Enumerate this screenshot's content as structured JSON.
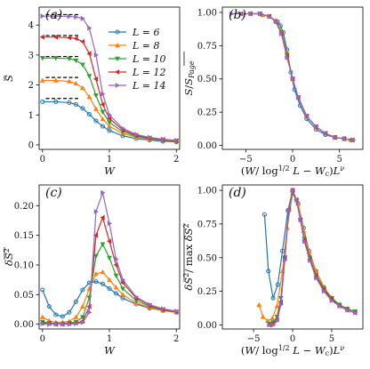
{
  "legend": [
    "L = 6",
    "L = 8",
    "L = 10",
    "L = 12",
    "L = 14"
  ],
  "colors": [
    "#1f77b4",
    "#ff7f0e",
    "#2ca02c",
    "#d62728",
    "#9467bd"
  ],
  "markers": [
    "circle",
    "triangle-up",
    "triangle-down",
    "triangle-left",
    "triangle-right"
  ],
  "chart_data": [
    {
      "type": "line",
      "panel": "(a)",
      "xlabel": "W",
      "ylabel": "S̄",
      "xlim": [
        -0.05,
        2.05
      ],
      "ylim": [
        -0.15,
        4.6
      ],
      "xticks": [
        0,
        1,
        2
      ],
      "yticks": [
        0,
        1,
        2,
        3,
        4
      ],
      "legend_position": "top-right",
      "page_values": [
        1.55,
        2.25,
        2.95,
        3.65,
        4.35
      ],
      "series": [
        {
          "name": "L = 6",
          "x": [
            0.0,
            0.2,
            0.4,
            0.5,
            0.6,
            0.7,
            0.8,
            0.9,
            1.0,
            1.2,
            1.4,
            1.6,
            1.8,
            2.0
          ],
          "y": [
            1.44,
            1.44,
            1.41,
            1.35,
            1.22,
            1.02,
            0.8,
            0.62,
            0.48,
            0.3,
            0.21,
            0.16,
            0.12,
            0.1
          ]
        },
        {
          "name": "L = 8",
          "x": [
            0.0,
            0.2,
            0.4,
            0.5,
            0.6,
            0.7,
            0.8,
            0.9,
            1.0,
            1.2,
            1.4,
            1.6,
            1.8,
            2.0
          ],
          "y": [
            2.15,
            2.15,
            2.12,
            2.05,
            1.9,
            1.6,
            1.2,
            0.86,
            0.62,
            0.38,
            0.26,
            0.19,
            0.15,
            0.12
          ]
        },
        {
          "name": "L = 10",
          "x": [
            0.0,
            0.2,
            0.4,
            0.5,
            0.6,
            0.7,
            0.8,
            0.9,
            1.0,
            1.2,
            1.4,
            1.6,
            1.8,
            2.0
          ],
          "y": [
            2.9,
            2.9,
            2.88,
            2.82,
            2.68,
            2.3,
            1.65,
            1.1,
            0.75,
            0.44,
            0.29,
            0.21,
            0.16,
            0.13
          ]
        },
        {
          "name": "L = 12",
          "x": [
            0.0,
            0.2,
            0.4,
            0.5,
            0.6,
            0.7,
            0.8,
            0.9,
            1.0,
            1.2,
            1.4,
            1.6,
            1.8,
            2.0
          ],
          "y": [
            3.6,
            3.6,
            3.58,
            3.55,
            3.45,
            3.05,
            2.2,
            1.35,
            0.88,
            0.5,
            0.32,
            0.23,
            0.18,
            0.14
          ]
        },
        {
          "name": "L = 14",
          "x": [
            0.0,
            0.2,
            0.4,
            0.5,
            0.6,
            0.7,
            0.8,
            0.9,
            1.0,
            1.2,
            1.4,
            1.6,
            1.8,
            2.0
          ],
          "y": [
            4.3,
            4.3,
            4.29,
            4.27,
            4.22,
            3.9,
            3.0,
            1.7,
            1.0,
            0.55,
            0.35,
            0.25,
            0.19,
            0.15
          ]
        }
      ]
    },
    {
      "type": "line",
      "panel": "(b)",
      "xlabel": "(W/log^{1/2} L − W_c) L^ν",
      "ylabel": "S̄/S_Page",
      "xlim": [
        -7.5,
        7.5
      ],
      "ylim": [
        -0.03,
        1.04
      ],
      "xticks": [
        -5,
        0,
        5
      ],
      "yticks": [
        0.0,
        0.25,
        0.5,
        0.75,
        1.0
      ],
      "ytick_labels": [
        "0.00",
        "0.25",
        "0.50",
        "0.75",
        "1.00"
      ],
      "series": [
        {
          "name": "L = 6",
          "x": [
            -1.6,
            -1.3,
            -1.0,
            -0.6,
            -0.2,
            0.2,
            0.8,
            1.5,
            2.5,
            3.5,
            4.5,
            5.5
          ],
          "y": [
            0.93,
            0.9,
            0.85,
            0.72,
            0.55,
            0.42,
            0.3,
            0.2,
            0.12,
            0.08,
            0.06,
            0.05
          ]
        },
        {
          "name": "L = 8",
          "x": [
            -3.2,
            -2.5,
            -1.8,
            -1.2,
            -0.6,
            0.0,
            0.6,
            1.5,
            2.5,
            3.5,
            4.5,
            5.5,
            6.2
          ],
          "y": [
            0.98,
            0.97,
            0.94,
            0.86,
            0.7,
            0.5,
            0.36,
            0.22,
            0.14,
            0.09,
            0.06,
            0.05,
            0.04
          ]
        },
        {
          "name": "L = 10",
          "x": [
            -4.5,
            -3.5,
            -2.5,
            -1.8,
            -1.2,
            -0.6,
            0.0,
            0.6,
            1.5,
            2.5,
            3.5,
            4.5,
            5.5,
            6.3
          ],
          "y": [
            0.99,
            0.99,
            0.97,
            0.93,
            0.85,
            0.68,
            0.5,
            0.36,
            0.22,
            0.14,
            0.09,
            0.06,
            0.05,
            0.04
          ]
        },
        {
          "name": "L = 12",
          "x": [
            -5.5,
            -4.5,
            -3.5,
            -2.5,
            -1.8,
            -1.2,
            -0.6,
            0.0,
            0.6,
            1.5,
            2.5,
            3.5,
            4.5,
            5.5,
            6.4
          ],
          "y": [
            0.99,
            0.99,
            0.99,
            0.97,
            0.93,
            0.84,
            0.67,
            0.5,
            0.36,
            0.22,
            0.14,
            0.09,
            0.06,
            0.05,
            0.04
          ]
        },
        {
          "name": "L = 14",
          "x": [
            -6.5,
            -5.5,
            -4.5,
            -3.5,
            -2.5,
            -1.8,
            -1.2,
            -0.6,
            0.0,
            0.6,
            1.5,
            2.5,
            3.5,
            4.5,
            5.5,
            6.5
          ],
          "y": [
            0.99,
            0.99,
            0.99,
            0.99,
            0.97,
            0.93,
            0.84,
            0.66,
            0.5,
            0.36,
            0.22,
            0.14,
            0.09,
            0.06,
            0.05,
            0.04
          ]
        }
      ]
    },
    {
      "type": "line",
      "panel": "(c)",
      "xlabel": "W",
      "ylabel": "δS²",
      "xlim": [
        -0.05,
        2.05
      ],
      "ylim": [
        -0.008,
        0.235
      ],
      "xticks": [
        0,
        1,
        2
      ],
      "yticks": [
        0.0,
        0.05,
        0.1,
        0.15,
        0.2
      ],
      "ytick_labels": [
        "0.00",
        "0.05",
        "0.10",
        "0.15",
        "0.20"
      ],
      "series": [
        {
          "name": "L = 6",
          "x": [
            0.0,
            0.1,
            0.2,
            0.3,
            0.4,
            0.5,
            0.6,
            0.7,
            0.8,
            0.9,
            1.0,
            1.1,
            1.2,
            1.4,
            1.6,
            1.8,
            2.0
          ],
          "y": [
            0.058,
            0.03,
            0.016,
            0.013,
            0.02,
            0.038,
            0.058,
            0.07,
            0.072,
            0.068,
            0.06,
            0.052,
            0.044,
            0.034,
            0.027,
            0.023,
            0.02
          ]
        },
        {
          "name": "L = 8",
          "x": [
            0.0,
            0.1,
            0.2,
            0.3,
            0.4,
            0.5,
            0.6,
            0.7,
            0.8,
            0.9,
            1.0,
            1.1,
            1.2,
            1.4,
            1.6,
            1.8,
            2.0
          ],
          "y": [
            0.012,
            0.006,
            0.003,
            0.003,
            0.005,
            0.012,
            0.03,
            0.06,
            0.085,
            0.088,
            0.075,
            0.062,
            0.05,
            0.036,
            0.028,
            0.023,
            0.02
          ]
        },
        {
          "name": "L = 10",
          "x": [
            0.0,
            0.1,
            0.2,
            0.3,
            0.4,
            0.5,
            0.6,
            0.7,
            0.8,
            0.9,
            1.0,
            1.1,
            1.2,
            1.4,
            1.6,
            1.8,
            2.0
          ],
          "y": [
            0.004,
            0.002,
            0.001,
            0.001,
            0.002,
            0.004,
            0.012,
            0.045,
            0.115,
            0.135,
            0.112,
            0.082,
            0.06,
            0.04,
            0.03,
            0.024,
            0.021
          ]
        },
        {
          "name": "L = 12",
          "x": [
            0.0,
            0.1,
            0.2,
            0.3,
            0.4,
            0.5,
            0.6,
            0.7,
            0.8,
            0.9,
            1.0,
            1.1,
            1.2,
            1.4,
            1.6,
            1.8,
            2.0
          ],
          "y": [
            0.002,
            0.001,
            0.0,
            0.0,
            0.001,
            0.002,
            0.005,
            0.03,
            0.15,
            0.18,
            0.14,
            0.1,
            0.07,
            0.044,
            0.032,
            0.025,
            0.021
          ]
        },
        {
          "name": "L = 14",
          "x": [
            0.0,
            0.1,
            0.2,
            0.3,
            0.4,
            0.5,
            0.6,
            0.7,
            0.8,
            0.9,
            1.0,
            1.1,
            1.2,
            1.4,
            1.6,
            1.8,
            2.0
          ],
          "y": [
            0.001,
            0.0,
            0.0,
            0.0,
            0.0,
            0.001,
            0.003,
            0.02,
            0.19,
            0.222,
            0.17,
            0.11,
            0.075,
            0.046,
            0.033,
            0.026,
            0.022
          ]
        }
      ]
    },
    {
      "type": "line",
      "panel": "(d)",
      "xlabel": "(W/log^{1/2} L − W_c) L^ν",
      "ylabel": "δS²/max δS²",
      "xlim": [
        -9.0,
        9.0
      ],
      "ylim": [
        -0.03,
        1.04
      ],
      "xticks": [
        -5,
        0,
        5
      ],
      "yticks": [
        0.0,
        0.25,
        0.5,
        0.75,
        1.0
      ],
      "ytick_labels": [
        "0.00",
        "0.25",
        "0.50",
        "0.75",
        "1.00"
      ],
      "series": [
        {
          "name": "L = 6",
          "x": [
            -3.6,
            -3.1,
            -2.5,
            -1.9,
            -1.3,
            -0.6,
            0.0,
            0.7,
            1.4,
            2.1,
            3.0,
            4.0,
            5.0,
            6.0
          ],
          "y": [
            0.82,
            0.4,
            0.2,
            0.3,
            0.55,
            0.85,
            1.0,
            0.9,
            0.72,
            0.55,
            0.4,
            0.28,
            0.2,
            0.15
          ]
        },
        {
          "name": "L = 8",
          "x": [
            -4.3,
            -3.8,
            -3.2,
            -2.6,
            -2.0,
            -1.3,
            -0.7,
            0.0,
            0.7,
            1.4,
            2.1,
            3.0,
            4.0,
            5.0,
            6.0,
            7.0
          ],
          "y": [
            0.15,
            0.06,
            0.03,
            0.05,
            0.14,
            0.4,
            0.72,
            0.98,
            0.9,
            0.7,
            0.54,
            0.4,
            0.28,
            0.2,
            0.15,
            0.12
          ]
        },
        {
          "name": "L = 10",
          "x": [
            -3.0,
            -2.5,
            -2.0,
            -1.5,
            -1.0,
            -0.5,
            0.0,
            0.5,
            1.0,
            1.5,
            2.2,
            3.0,
            4.0,
            5.0,
            6.0,
            7.0,
            8.0
          ],
          "y": [
            0.01,
            0.02,
            0.06,
            0.2,
            0.5,
            0.84,
            0.98,
            0.92,
            0.78,
            0.64,
            0.5,
            0.37,
            0.27,
            0.2,
            0.15,
            0.12,
            0.1
          ]
        },
        {
          "name": "L = 12",
          "x": [
            -3.0,
            -2.5,
            -2.0,
            -1.5,
            -1.0,
            -0.5,
            0.0,
            0.5,
            1.0,
            1.5,
            2.2,
            3.0,
            4.0,
            5.0,
            6.0,
            7.0,
            8.0
          ],
          "y": [
            0.0,
            0.01,
            0.04,
            0.17,
            0.5,
            0.86,
            1.0,
            0.93,
            0.78,
            0.63,
            0.49,
            0.36,
            0.26,
            0.19,
            0.14,
            0.11,
            0.09
          ]
        },
        {
          "name": "L = 14",
          "x": [
            -3.0,
            -2.5,
            -2.0,
            -1.5,
            -1.0,
            -0.5,
            0.0,
            0.5,
            1.0,
            1.5,
            2.2,
            3.0,
            4.0,
            5.0,
            6.0,
            7.0,
            8.0
          ],
          "y": [
            0.0,
            0.0,
            0.03,
            0.15,
            0.48,
            0.85,
            1.0,
            0.93,
            0.78,
            0.62,
            0.48,
            0.35,
            0.25,
            0.18,
            0.14,
            0.11,
            0.09
          ]
        }
      ]
    }
  ]
}
